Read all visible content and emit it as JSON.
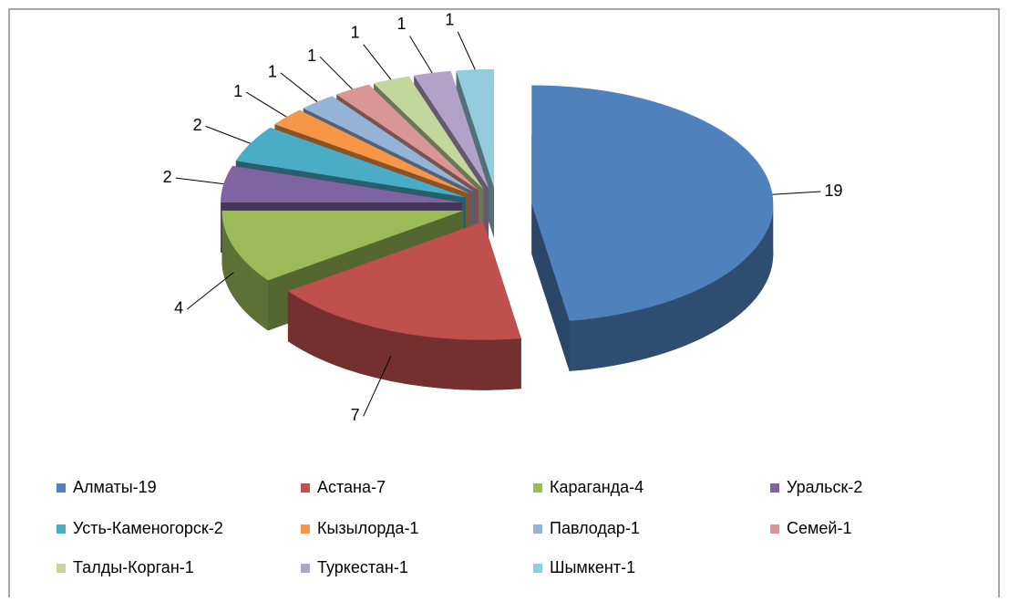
{
  "chart_data": {
    "type": "pie",
    "categories": [
      "Алматы-19",
      "Астана-7",
      "Караганда-4",
      "Уральск-2",
      "Усть-Каменогорск-2",
      "Кызылорда-1",
      "Павлодар-1",
      "Семей-1",
      "Талды-Корган-1",
      "Туркестан-1",
      "Шымкент-1"
    ],
    "values": [
      19,
      7,
      4,
      2,
      2,
      1,
      1,
      1,
      1,
      1,
      1
    ],
    "colors": [
      "#4f81bd",
      "#c0504d",
      "#9bbb59",
      "#8064a2",
      "#4bacc6",
      "#f79646",
      "#95b3d7",
      "#d99694",
      "#c3d69b",
      "#b3a2c7",
      "#93cddd"
    ],
    "legend": "bottom"
  }
}
